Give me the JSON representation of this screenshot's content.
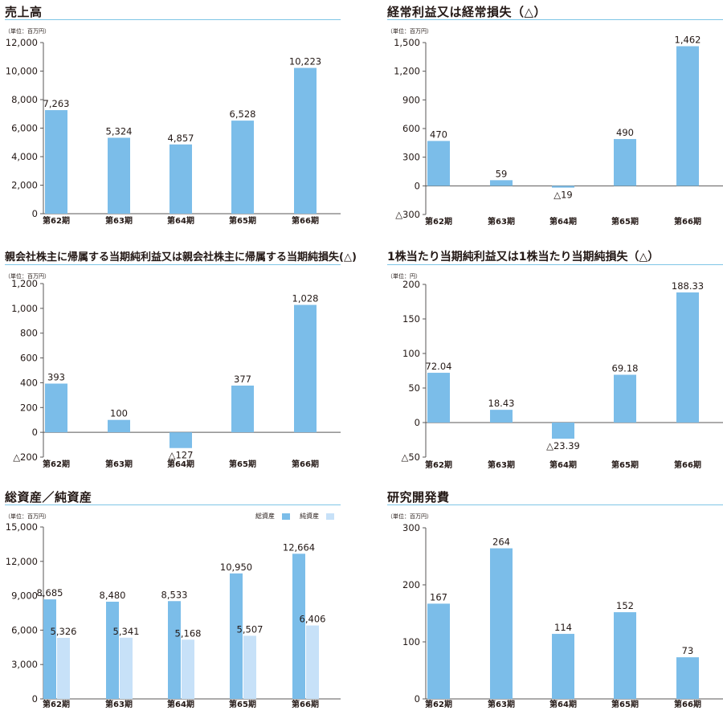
{
  "colors": {
    "bar": "#7bbde9",
    "bar_light": "#c7e1f8",
    "rule": "#7fc6e6",
    "text": "#231815"
  },
  "chart_data": [
    {
      "type": "bar",
      "title": "売上高",
      "unit_label": "（単位：百万円）",
      "categories": [
        "第62期",
        "第63期",
        "第64期",
        "第65期",
        "第66期"
      ],
      "values": [
        7263,
        5324,
        4857,
        6528,
        10223
      ],
      "value_labels": [
        "7,263",
        "5,324",
        "4,857",
        "6,528",
        "10,223"
      ],
      "yticks": [
        0,
        2000,
        4000,
        6000,
        8000,
        10000,
        12000
      ],
      "ytick_labels": [
        "0",
        "2,000",
        "4,000",
        "6,000",
        "8,000",
        "10,000",
        "12,000"
      ],
      "ylim": [
        0,
        12000
      ]
    },
    {
      "type": "bar",
      "title": "経常利益又は経常損失（△）",
      "unit_label": "（単位：百万円）",
      "categories": [
        "第62期",
        "第63期",
        "第64期",
        "第65期",
        "第66期"
      ],
      "values": [
        470,
        59,
        -19,
        490,
        1462
      ],
      "value_labels": [
        "470",
        "59",
        "△19",
        "490",
        "1,462"
      ],
      "yticks": [
        -300,
        0,
        300,
        600,
        900,
        1200,
        1500
      ],
      "ytick_labels": [
        "△300",
        "0",
        "300",
        "600",
        "900",
        "1,200",
        "1,500"
      ],
      "ylim": [
        -300,
        1500
      ]
    },
    {
      "type": "bar",
      "title": "親会社株主に帰属する当期純利益又は親会社株主に帰属する当期純損失(△)",
      "unit_label": "（単位：百万円）",
      "categories": [
        "第62期",
        "第63期",
        "第64期",
        "第65期",
        "第66期"
      ],
      "values": [
        393,
        100,
        -127,
        377,
        1028
      ],
      "value_labels": [
        "393",
        "100",
        "△127",
        "377",
        "1,028"
      ],
      "yticks": [
        -200,
        0,
        200,
        400,
        600,
        800,
        1000,
        1200
      ],
      "ytick_labels": [
        "△200",
        "0",
        "200",
        "400",
        "600",
        "800",
        "1,000",
        "1,200"
      ],
      "ylim": [
        -200,
        1200
      ]
    },
    {
      "type": "bar",
      "title": "1株当たり当期純利益又は1株当たり当期純損失（△）",
      "unit_label": "（単位：円）",
      "categories": [
        "第62期",
        "第63期",
        "第64期",
        "第65期",
        "第66期"
      ],
      "values": [
        72.04,
        18.43,
        -23.39,
        69.18,
        188.33
      ],
      "value_labels": [
        "72.04",
        "18.43",
        "△23.39",
        "69.18",
        "188.33"
      ],
      "yticks": [
        -50,
        0,
        50,
        100,
        150,
        200
      ],
      "ytick_labels": [
        "△50",
        "0",
        "50",
        "100",
        "150",
        "200"
      ],
      "ylim": [
        -50,
        200
      ]
    },
    {
      "type": "bar",
      "title": "総資産／純資産",
      "unit_label": "（単位：百万円）",
      "categories": [
        "第62期",
        "第63期",
        "第64期",
        "第65期",
        "第66期"
      ],
      "series": [
        {
          "name": "総資産",
          "values": [
            8685,
            8480,
            8533,
            10950,
            12664
          ],
          "value_labels": [
            "8,685",
            "8,480",
            "8,533",
            "10,950",
            "12,664"
          ]
        },
        {
          "name": "純資産",
          "values": [
            5326,
            5341,
            5168,
            5507,
            6406
          ],
          "value_labels": [
            "5,326",
            "5,341",
            "5,168",
            "5,507",
            "6,406"
          ]
        }
      ],
      "yticks": [
        0,
        3000,
        6000,
        9000,
        12000,
        15000
      ],
      "ytick_labels": [
        "0",
        "3,000",
        "6,000",
        "9,000",
        "12,000",
        "15,000"
      ],
      "ylim": [
        0,
        15000
      ],
      "legend": "top-right"
    },
    {
      "type": "bar",
      "title": "研究開発費",
      "unit_label": "（単位：百万円）",
      "categories": [
        "第62期",
        "第63期",
        "第64期",
        "第65期",
        "第66期"
      ],
      "values": [
        167,
        264,
        114,
        152,
        73
      ],
      "value_labels": [
        "167",
        "264",
        "114",
        "152",
        "73"
      ],
      "yticks": [
        0,
        100,
        200,
        300
      ],
      "ytick_labels": [
        "0",
        "100",
        "200",
        "300"
      ],
      "ylim": [
        0,
        300
      ]
    }
  ]
}
